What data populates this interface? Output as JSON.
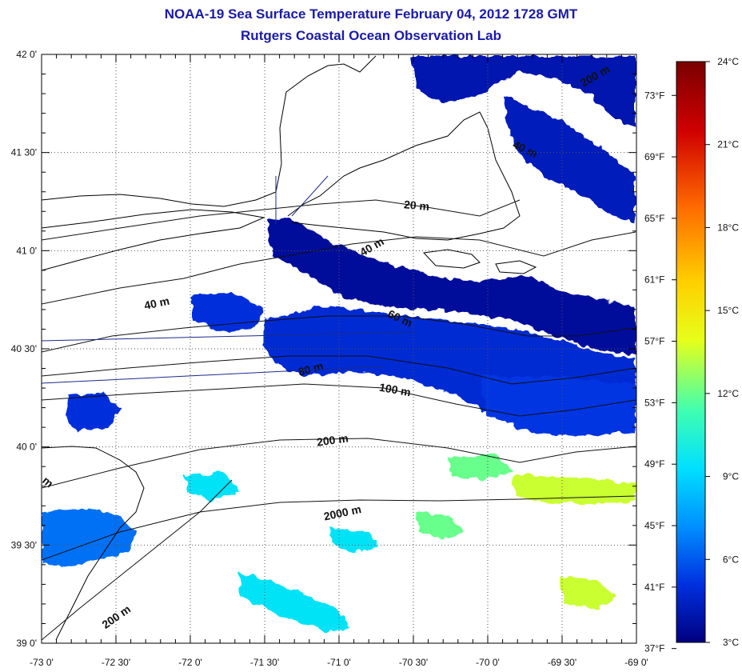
{
  "header": {
    "title": "NOAA-19 Sea Surface Temperature February 04, 2012 1728 GMT",
    "subtitle": "Rutgers Coastal Ocean Observation Lab"
  },
  "map": {
    "lon_range": [
      -73.0,
      -69.0
    ],
    "lat_range": [
      39.0,
      42.0
    ],
    "lon_ticks": [
      "-73 0'",
      "-72 30'",
      "-72 0'",
      "-71 30'",
      "-71 0'",
      "-70 30'",
      "-70 0'",
      "-69 30'",
      "-69 0'"
    ],
    "lat_ticks": [
      "42 0'",
      "41 30'",
      "41 0'",
      "40 30'",
      "40 0'",
      "39 30'",
      "39 0'"
    ],
    "grid": "dotted",
    "colors": {
      "land_outline": "#000000",
      "water_background": "#ffffff",
      "grid": "#555555"
    },
    "contour_labels": [
      "200 m",
      "40 m",
      "20 m",
      "40 m",
      "40 m",
      "60 m",
      "80 m",
      "100 m",
      "200 m",
      "2000 m",
      "200 m",
      "m"
    ],
    "sst_patches": [
      {
        "region": "gulf-of-maine-north",
        "temp_c": 4.0
      },
      {
        "region": "georges-bank-channel",
        "temp_c": 4.3
      },
      {
        "region": "nantucket-shoals-wedge",
        "temp_c": 3.6
      },
      {
        "region": "southern-new-england-shelf",
        "temp_c": 4.8
      },
      {
        "region": "mid-shelf-east",
        "temp_c": 5.2
      },
      {
        "region": "long-island-offshore",
        "temp_c": 5.0
      },
      {
        "region": "new-york-bight-southwest",
        "temp_c": 6.5
      },
      {
        "region": "slope-sea-south",
        "temp_c": 9.5
      },
      {
        "region": "gulf-stream-warm-east",
        "temp_c": 13.5
      },
      {
        "region": "slope-sea-southeast",
        "temp_c": 12.0
      }
    ]
  },
  "colorbar": {
    "celsius_ticks": [
      "24°C",
      "21°C",
      "18°C",
      "15°C",
      "12°C",
      "9°C",
      "6°C",
      "3°C"
    ],
    "fahrenheit_ticks": [
      "73°F",
      "69°F",
      "65°F",
      "61°F",
      "57°F",
      "53°F",
      "49°F",
      "45°F",
      "41°F",
      "37°F"
    ],
    "range_c": [
      3,
      24
    ],
    "stops": [
      {
        "offset": 0.0,
        "color": "#7a0000"
      },
      {
        "offset": 0.12,
        "color": "#d00000"
      },
      {
        "offset": 0.25,
        "color": "#ff6a00"
      },
      {
        "offset": 0.38,
        "color": "#ffd000"
      },
      {
        "offset": 0.48,
        "color": "#e6ff1a"
      },
      {
        "offset": 0.6,
        "color": "#40ffb0"
      },
      {
        "offset": 0.7,
        "color": "#00e0ff"
      },
      {
        "offset": 0.8,
        "color": "#0090ff"
      },
      {
        "offset": 0.9,
        "color": "#0030e0"
      },
      {
        "offset": 1.0,
        "color": "#000080"
      }
    ]
  }
}
